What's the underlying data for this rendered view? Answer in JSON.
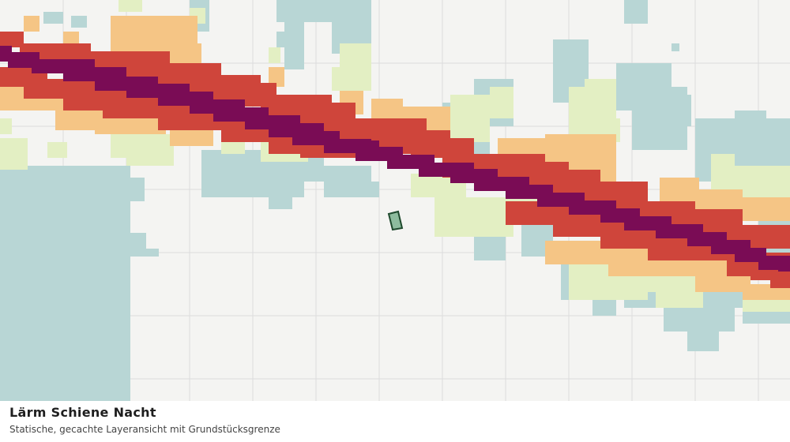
{
  "map": {
    "layer": "Lärm Schiene Nacht",
    "description": "Statische, gecachte Layeransicht mit Grundstücksgrenze",
    "colors": {
      "background": "#f4f4f2",
      "grid": "#dcdcdc",
      "buildings": "#b8d6d5",
      "noise_class_1": "#e3efc3",
      "noise_class_2": "#f5c585",
      "noise_class_3": "#cf453b",
      "noise_class_4": "#7a0c55",
      "parcel_fill": "#8dbc9e",
      "parcel_stroke": "#1f4a2e"
    }
  }
}
